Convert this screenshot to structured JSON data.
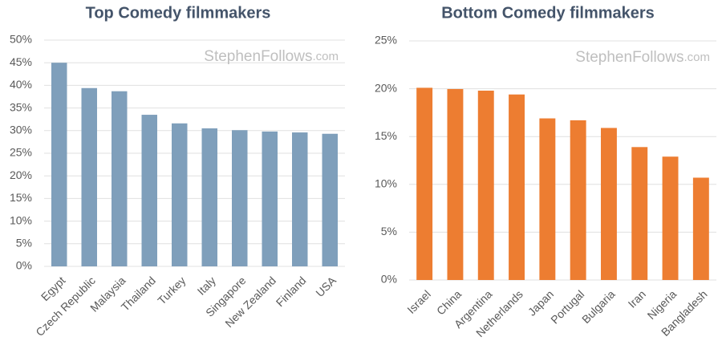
{
  "chart_data": [
    {
      "type": "bar",
      "title": "Top Comedy filmmakers",
      "watermark": [
        "StephenFollows",
        ".com"
      ],
      "categories": [
        "Egypt",
        "Czech Republic",
        "Malaysia",
        "Thailand",
        "Turkey",
        "Italy",
        "Singapore",
        "New Zealand",
        "Finland",
        "USA"
      ],
      "values": [
        45,
        39.4,
        38.7,
        33.5,
        31.6,
        30.5,
        30.1,
        29.8,
        29.6,
        29.3
      ],
      "color": "#7f9fbb",
      "ylim": [
        0,
        50
      ],
      "yticks": [
        {
          "value": 0,
          "label": "0%"
        },
        {
          "value": 5,
          "label": "5%"
        },
        {
          "value": 10,
          "label": "10%"
        },
        {
          "value": 15,
          "label": "15%"
        },
        {
          "value": 20,
          "label": "20%"
        },
        {
          "value": 25,
          "label": "25%"
        },
        {
          "value": 30,
          "label": "30%"
        },
        {
          "value": 35,
          "label": "35%"
        },
        {
          "value": 40,
          "label": "40%"
        },
        {
          "value": 45,
          "label": "45%"
        },
        {
          "value": 50,
          "label": "50%"
        }
      ],
      "grid": true
    },
    {
      "type": "bar",
      "title": "Bottom Comedy filmmakers",
      "watermark": [
        "StephenFollows",
        ".com"
      ],
      "categories": [
        "Israel",
        "China",
        "Argentina",
        "Netherlands",
        "Japan",
        "Portugal",
        "Bulgaria",
        "Iran",
        "Nigeria",
        "Bangladesh"
      ],
      "values": [
        20.1,
        19.97,
        19.8,
        19.4,
        16.9,
        16.7,
        15.9,
        13.9,
        12.9,
        10.7
      ],
      "color": "#ed7d31",
      "ylim": [
        0,
        25
      ],
      "yticks": [
        {
          "value": 0,
          "label": "0%"
        },
        {
          "value": 5,
          "label": "5%"
        },
        {
          "value": 10,
          "label": "10%"
        },
        {
          "value": 15,
          "label": "15%"
        },
        {
          "value": 20,
          "label": "20%"
        },
        {
          "value": 25,
          "label": "25%"
        }
      ],
      "grid": true
    }
  ]
}
